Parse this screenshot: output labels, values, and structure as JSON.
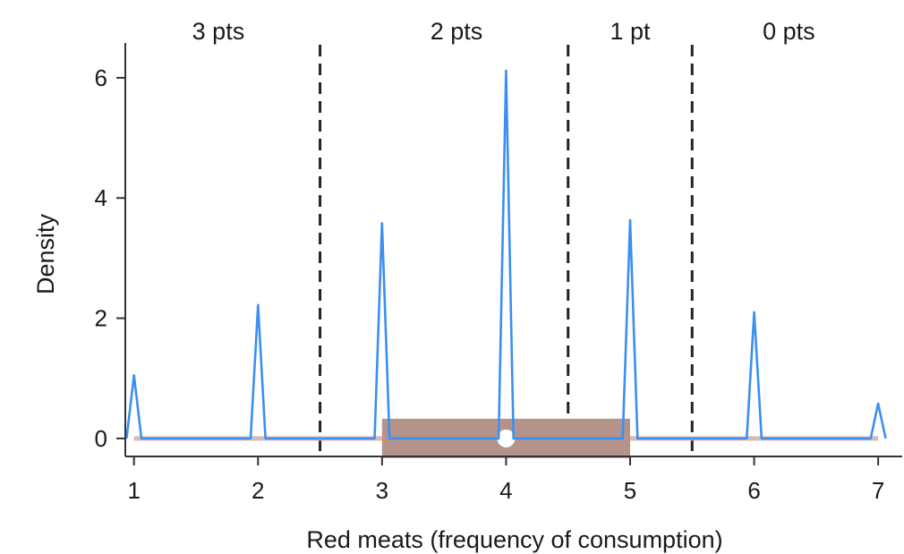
{
  "chart_data": {
    "type": "line",
    "xlabel": "Red meats (frequency of consumption)",
    "ylabel": "Density",
    "xlim": [
      0.93,
      7.1
    ],
    "ylim": [
      -0.3,
      6.55
    ],
    "x_ticks": [
      1,
      2,
      3,
      4,
      5,
      6,
      7
    ],
    "y_ticks": [
      0,
      2,
      4,
      6
    ],
    "grid": false,
    "legend": "none",
    "series": [
      {
        "color": "#3b8ff0",
        "points": [
          [
            0.94,
            0
          ],
          [
            1.0,
            1.05
          ],
          [
            1.06,
            0
          ],
          [
            1.94,
            0
          ],
          [
            2.0,
            2.22
          ],
          [
            2.06,
            0
          ],
          [
            2.94,
            0
          ],
          [
            3.0,
            3.58
          ],
          [
            3.06,
            0
          ],
          [
            3.94,
            0
          ],
          [
            4.0,
            6.12
          ],
          [
            4.06,
            0
          ],
          [
            4.94,
            0
          ],
          [
            5.0,
            3.63
          ],
          [
            5.06,
            0
          ],
          [
            5.94,
            0
          ],
          [
            6.0,
            2.1
          ],
          [
            6.06,
            0
          ],
          [
            6.94,
            0
          ],
          [
            7.0,
            0.58
          ],
          [
            7.06,
            0
          ]
        ]
      }
    ],
    "boxplot": {
      "min": 1,
      "q1": 3,
      "median": 4,
      "q3": 5,
      "max": 7,
      "box_color": "#b5938b",
      "whisker_color": "#d9b9b3",
      "median_color": "#ffffff"
    },
    "cutoffs": [
      2.5,
      4.5,
      5.5
    ],
    "regions": [
      {
        "label": "3 pts",
        "x": 1.68
      },
      {
        "label": "2 pts",
        "x": 3.6
      },
      {
        "label": "1 pt",
        "x": 5.0
      },
      {
        "label": "0 pts",
        "x": 6.28
      }
    ]
  }
}
